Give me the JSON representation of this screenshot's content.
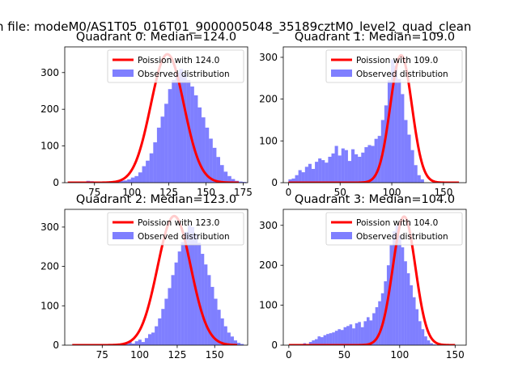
{
  "figure": {
    "suptitle": "n file: modeM0/AS1T05_016T01_9000005048_35189cztM0_level2_quad_clean"
  },
  "colors": {
    "hist": "#0000ff",
    "curve": "#ff0000",
    "axis": "#000000",
    "legend_border": "#cccccc"
  },
  "chart_data": [
    {
      "type": "bar",
      "title": "Quadrant 0: Median=124.0",
      "xlim": [
        55,
        178
      ],
      "ylim": [
        0,
        370
      ],
      "xticks": [
        75,
        100,
        125,
        150,
        175
      ],
      "yticks": [
        0,
        100,
        200,
        300
      ],
      "legend": [
        "Poission with 124.0",
        "Observed distribution"
      ],
      "hist": {
        "x0": 57,
        "bin_width": 2.5,
        "values": [
          0,
          0,
          0,
          2,
          3,
          5,
          4,
          3,
          3,
          2,
          3,
          4,
          2,
          3,
          5,
          6,
          9,
          14,
          18,
          28,
          45,
          60,
          80,
          110,
          150,
          180,
          215,
          255,
          280,
          300,
          310,
          298,
          280,
          262,
          238,
          205,
          178,
          150,
          120,
          95,
          70,
          48,
          30,
          18,
          10,
          5,
          3,
          2,
          1,
          1,
          0,
          0
        ]
      },
      "poisson": {
        "mean": 124.0,
        "x": [
          57,
          172
        ],
        "peak": 350
      }
    },
    {
      "type": "bar",
      "title": "Quadrant 1: Median=109.0",
      "xlim": [
        -5,
        172
      ],
      "ylim": [
        0,
        325
      ],
      "xticks": [
        0,
        50,
        100,
        150
      ],
      "yticks": [
        0,
        100,
        200,
        300
      ],
      "legend": [
        "Poission with 109.0",
        "Observed distribution"
      ],
      "hist": {
        "x0": 0,
        "bin_width": 3.2,
        "values": [
          8,
          10,
          18,
          30,
          25,
          38,
          45,
          33,
          50,
          58,
          54,
          48,
          62,
          70,
          88,
          65,
          82,
          78,
          52,
          80,
          68,
          62,
          72,
          85,
          90,
          88,
          105,
          112,
          150,
          185,
          245,
          295,
          280,
          248,
          212,
          150,
          115,
          78,
          42,
          18,
          8,
          0,
          0,
          0,
          0,
          0,
          0,
          0,
          0,
          0
        ]
      },
      "poisson": {
        "mean": 109.0,
        "x": [
          0,
          165
        ],
        "peak": 305
      }
    },
    {
      "type": "bar",
      "title": "Quadrant 2: Median=123.0",
      "xlim": [
        50,
        172
      ],
      "ylim": [
        0,
        345
      ],
      "xticks": [
        75,
        100,
        125,
        150
      ],
      "yticks": [
        0,
        100,
        200,
        300
      ],
      "legend": [
        "Poission with 123.0",
        "Observed distribution"
      ],
      "hist": {
        "x0": 55,
        "bin_width": 2.2,
        "values": [
          0,
          0,
          0,
          0,
          0,
          0,
          0,
          0,
          0,
          0,
          0,
          0,
          0,
          0,
          0,
          5,
          3,
          8,
          4,
          10,
          14,
          8,
          18,
          28,
          32,
          48,
          68,
          92,
          118,
          145,
          178,
          210,
          238,
          262,
          288,
          305,
          300,
          282,
          260,
          232,
          205,
          178,
          148,
          118,
          90,
          68,
          48,
          32,
          22,
          12,
          6,
          3
        ]
      },
      "poisson": {
        "mean": 123.0,
        "x": [
          55,
          165
        ],
        "peak": 328
      }
    },
    {
      "type": "bar",
      "title": "Quadrant 3: Median=104.0",
      "xlim": [
        -5,
        160
      ],
      "ylim": [
        0,
        340
      ],
      "xticks": [
        0,
        50,
        100,
        150
      ],
      "yticks": [
        0,
        100,
        200,
        300
      ],
      "legend": [
        "Poission with 104.0",
        "Observed distribution"
      ],
      "hist": {
        "x0": 0,
        "bin_width": 2.6,
        "values": [
          0,
          0,
          0,
          0,
          2,
          5,
          3,
          8,
          12,
          15,
          22,
          20,
          25,
          28,
          30,
          32,
          36,
          40,
          38,
          45,
          48,
          52,
          42,
          55,
          58,
          45,
          60,
          70,
          62,
          80,
          95,
          110,
          130,
          160,
          200,
          250,
          285,
          300,
          275,
          245,
          210,
          180,
          150,
          120,
          90,
          60,
          40,
          22,
          12,
          5,
          2,
          0,
          0,
          0,
          0,
          0,
          0,
          0
        ]
      },
      "poisson": {
        "mean": 104.0,
        "x": [
          0,
          150
        ],
        "peak": 322
      }
    }
  ]
}
